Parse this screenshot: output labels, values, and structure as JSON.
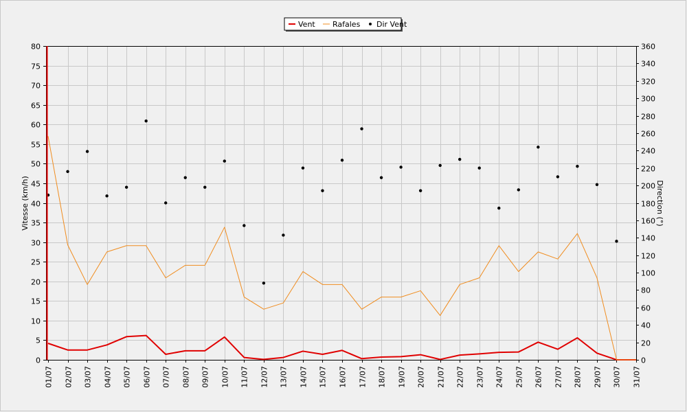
{
  "chart_data": {
    "type": "line",
    "title": "",
    "xlabel": "",
    "ylabel": "Vitesse (km/h)",
    "y2label": "Direction (°)",
    "ylim": [
      0,
      80
    ],
    "y2lim": [
      0,
      360
    ],
    "ytick_step": 5,
    "y2tick_step": 20,
    "grid": true,
    "legend_position": "top-center",
    "categories": [
      "01/07",
      "02/07",
      "03/07",
      "04/07",
      "05/07",
      "06/07",
      "07/07",
      "08/07",
      "09/07",
      "10/07",
      "11/07",
      "12/07",
      "13/07",
      "14/07",
      "15/07",
      "16/07",
      "17/07",
      "18/07",
      "19/07",
      "20/07",
      "21/07",
      "22/07",
      "23/07",
      "24/07",
      "25/07",
      "26/07",
      "27/07",
      "28/07",
      "29/07",
      "30/07",
      "31/07"
    ],
    "series": [
      {
        "name": "Vent",
        "axis": "left",
        "style": "line",
        "color": "#e00000",
        "values": [
          4.2,
          2.5,
          2.5,
          3.8,
          5.9,
          6.2,
          1.4,
          2.3,
          2.3,
          5.8,
          0.6,
          0.1,
          0.6,
          2.2,
          1.4,
          2.4,
          0.3,
          0.7,
          0.8,
          1.3,
          0.1,
          1.2,
          1.5,
          1.9,
          2.0,
          4.5,
          2.7,
          5.6,
          1.7,
          0.0,
          0.0
        ]
      },
      {
        "name": "Rafales",
        "axis": "left",
        "style": "line",
        "color": "#f08c1e",
        "values": [
          57,
          29.3,
          19.2,
          27.5,
          29.1,
          29.1,
          20.9,
          24.1,
          24.1,
          33.8,
          16.0,
          12.9,
          14.5,
          22.5,
          19.2,
          19.2,
          12.9,
          16.0,
          16.0,
          17.6,
          11.3,
          19.2,
          20.9,
          29.1,
          22.5,
          27.5,
          25.7,
          32.2,
          20.9,
          0.0,
          0.0
        ]
      },
      {
        "name": "Dir Vent",
        "axis": "right",
        "style": "points",
        "color": "#000000",
        "values": [
          189,
          216,
          239,
          188,
          198,
          274,
          180,
          209,
          198,
          228,
          154,
          88,
          143,
          220,
          194,
          229,
          265,
          209,
          221,
          194,
          223,
          230,
          220,
          174,
          195,
          244,
          210,
          222,
          201,
          136,
          null
        ]
      }
    ]
  }
}
